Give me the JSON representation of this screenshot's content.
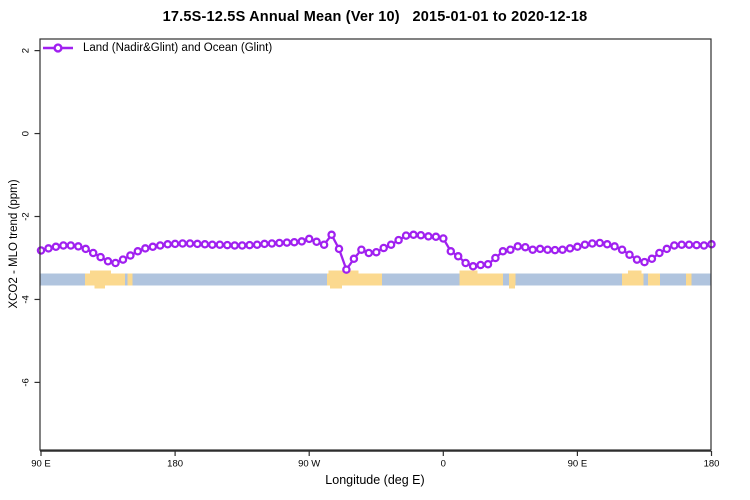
{
  "chart_data": {
    "type": "line",
    "title": "17.5S-12.5S Annual Mean (Ver 10)   2015-01-01 to 2020-12-18",
    "xlabel": "Longitude (deg E)",
    "ylabel": "XCO2 - MLO trend (ppm)",
    "legend": {
      "label": "Land (Nadir&Glint) and Ocean (Glint)",
      "position": "top-left",
      "marker": "open-circle-on-line"
    },
    "series_color": "#A020F0",
    "axis_color": "#2E2E2E",
    "grid": "off",
    "x_axis": {
      "label": "Longitude (deg E)",
      "range_lon": [
        90,
        540
      ],
      "ticks": [
        {
          "lon": 90,
          "label": "90 E"
        },
        {
          "lon": 180,
          "label": "180"
        },
        {
          "lon": 270,
          "label": "90 W"
        },
        {
          "lon": 360,
          "label": "0"
        },
        {
          "lon": 450,
          "label": "90 E"
        },
        {
          "lon": 540,
          "label": "180"
        }
      ]
    },
    "y_axis": {
      "label": "XCO2 - MLO trend (ppm)",
      "range": [
        -7.63,
        2.28
      ],
      "ticks": [
        {
          "value": 2,
          "label": "2"
        },
        {
          "value": 0,
          "label": "0"
        },
        {
          "value": -2,
          "label": "-2"
        },
        {
          "value": -4,
          "label": "-4"
        },
        {
          "value": -6,
          "label": "-6"
        }
      ]
    },
    "map_strip": {
      "description": "surface-type strip along latitude band: ocean blue, land tan",
      "ocean_color": "#B0C4DE",
      "land_color": "#FBD98F",
      "band_value_top": -3.37,
      "band_value_bottom": -3.66,
      "land_patches_lon": [
        {
          "from": 119.5,
          "to": 146.5,
          "bump_above": [
            123,
            137
          ],
          "bump_below": [
            126,
            133
          ]
        },
        {
          "from": 148,
          "to": 151.5
        },
        {
          "from": 282,
          "to": 319,
          "bump_above": [
            283,
            303
          ],
          "bump_below": [
            284,
            292
          ]
        },
        {
          "from": 371,
          "to": 400,
          "bump_above": [
            371,
            383
          ]
        },
        {
          "from": 404,
          "to": 408.5,
          "bump_below": [
            404,
            408
          ]
        },
        {
          "from": 480,
          "to": 494.5,
          "bump_above": [
            484,
            493
          ]
        },
        {
          "from": 497.5,
          "to": 505.5
        },
        {
          "from": 523,
          "to": 526.5
        }
      ]
    },
    "series": [
      {
        "name": "Land (Nadir&Glint) and Ocean (Glint)",
        "points": [
          [
            90,
            -2.82
          ],
          [
            95,
            -2.77
          ],
          [
            100,
            -2.73
          ],
          [
            105,
            -2.7
          ],
          [
            110,
            -2.7
          ],
          [
            115,
            -2.72
          ],
          [
            120,
            -2.78
          ],
          [
            125,
            -2.88
          ],
          [
            130,
            -2.98
          ],
          [
            135,
            -3.08
          ],
          [
            140,
            -3.12
          ],
          [
            145,
            -3.04
          ],
          [
            150,
            -2.94
          ],
          [
            155,
            -2.84
          ],
          [
            160,
            -2.77
          ],
          [
            165,
            -2.73
          ],
          [
            170,
            -2.7
          ],
          [
            175,
            -2.67
          ],
          [
            180,
            -2.66
          ],
          [
            185,
            -2.65
          ],
          [
            190,
            -2.65
          ],
          [
            195,
            -2.66
          ],
          [
            200,
            -2.67
          ],
          [
            205,
            -2.68
          ],
          [
            210,
            -2.68
          ],
          [
            215,
            -2.69
          ],
          [
            220,
            -2.7
          ],
          [
            225,
            -2.7
          ],
          [
            230,
            -2.69
          ],
          [
            235,
            -2.68
          ],
          [
            240,
            -2.66
          ],
          [
            245,
            -2.65
          ],
          [
            250,
            -2.64
          ],
          [
            255,
            -2.63
          ],
          [
            260,
            -2.62
          ],
          [
            265,
            -2.6
          ],
          [
            270,
            -2.54
          ],
          [
            275,
            -2.61
          ],
          [
            280,
            -2.68
          ],
          [
            285,
            -2.44
          ],
          [
            290,
            -2.78
          ],
          [
            295,
            -3.28
          ],
          [
            300,
            -3.02
          ],
          [
            305,
            -2.8
          ],
          [
            310,
            -2.88
          ],
          [
            315,
            -2.86
          ],
          [
            320,
            -2.76
          ],
          [
            325,
            -2.68
          ],
          [
            330,
            -2.57
          ],
          [
            335,
            -2.46
          ],
          [
            340,
            -2.44
          ],
          [
            345,
            -2.45
          ],
          [
            350,
            -2.48
          ],
          [
            355,
            -2.49
          ],
          [
            360,
            -2.53
          ],
          [
            365,
            -2.84
          ],
          [
            370,
            -2.96
          ],
          [
            375,
            -3.12
          ],
          [
            380,
            -3.2
          ],
          [
            385,
            -3.17
          ],
          [
            390,
            -3.15
          ],
          [
            395,
            -3.0
          ],
          [
            400,
            -2.84
          ],
          [
            405,
            -2.8
          ],
          [
            410,
            -2.72
          ],
          [
            415,
            -2.74
          ],
          [
            420,
            -2.8
          ],
          [
            425,
            -2.78
          ],
          [
            430,
            -2.8
          ],
          [
            435,
            -2.81
          ],
          [
            440,
            -2.8
          ],
          [
            445,
            -2.77
          ],
          [
            450,
            -2.73
          ],
          [
            455,
            -2.68
          ],
          [
            460,
            -2.65
          ],
          [
            465,
            -2.64
          ],
          [
            470,
            -2.67
          ],
          [
            475,
            -2.72
          ],
          [
            480,
            -2.8
          ],
          [
            485,
            -2.92
          ],
          [
            490,
            -3.04
          ],
          [
            495,
            -3.1
          ],
          [
            500,
            -3.02
          ],
          [
            505,
            -2.88
          ],
          [
            510,
            -2.78
          ],
          [
            515,
            -2.7
          ],
          [
            520,
            -2.68
          ],
          [
            525,
            -2.68
          ],
          [
            530,
            -2.69
          ],
          [
            535,
            -2.7
          ],
          [
            540,
            -2.67
          ]
        ]
      }
    ]
  }
}
